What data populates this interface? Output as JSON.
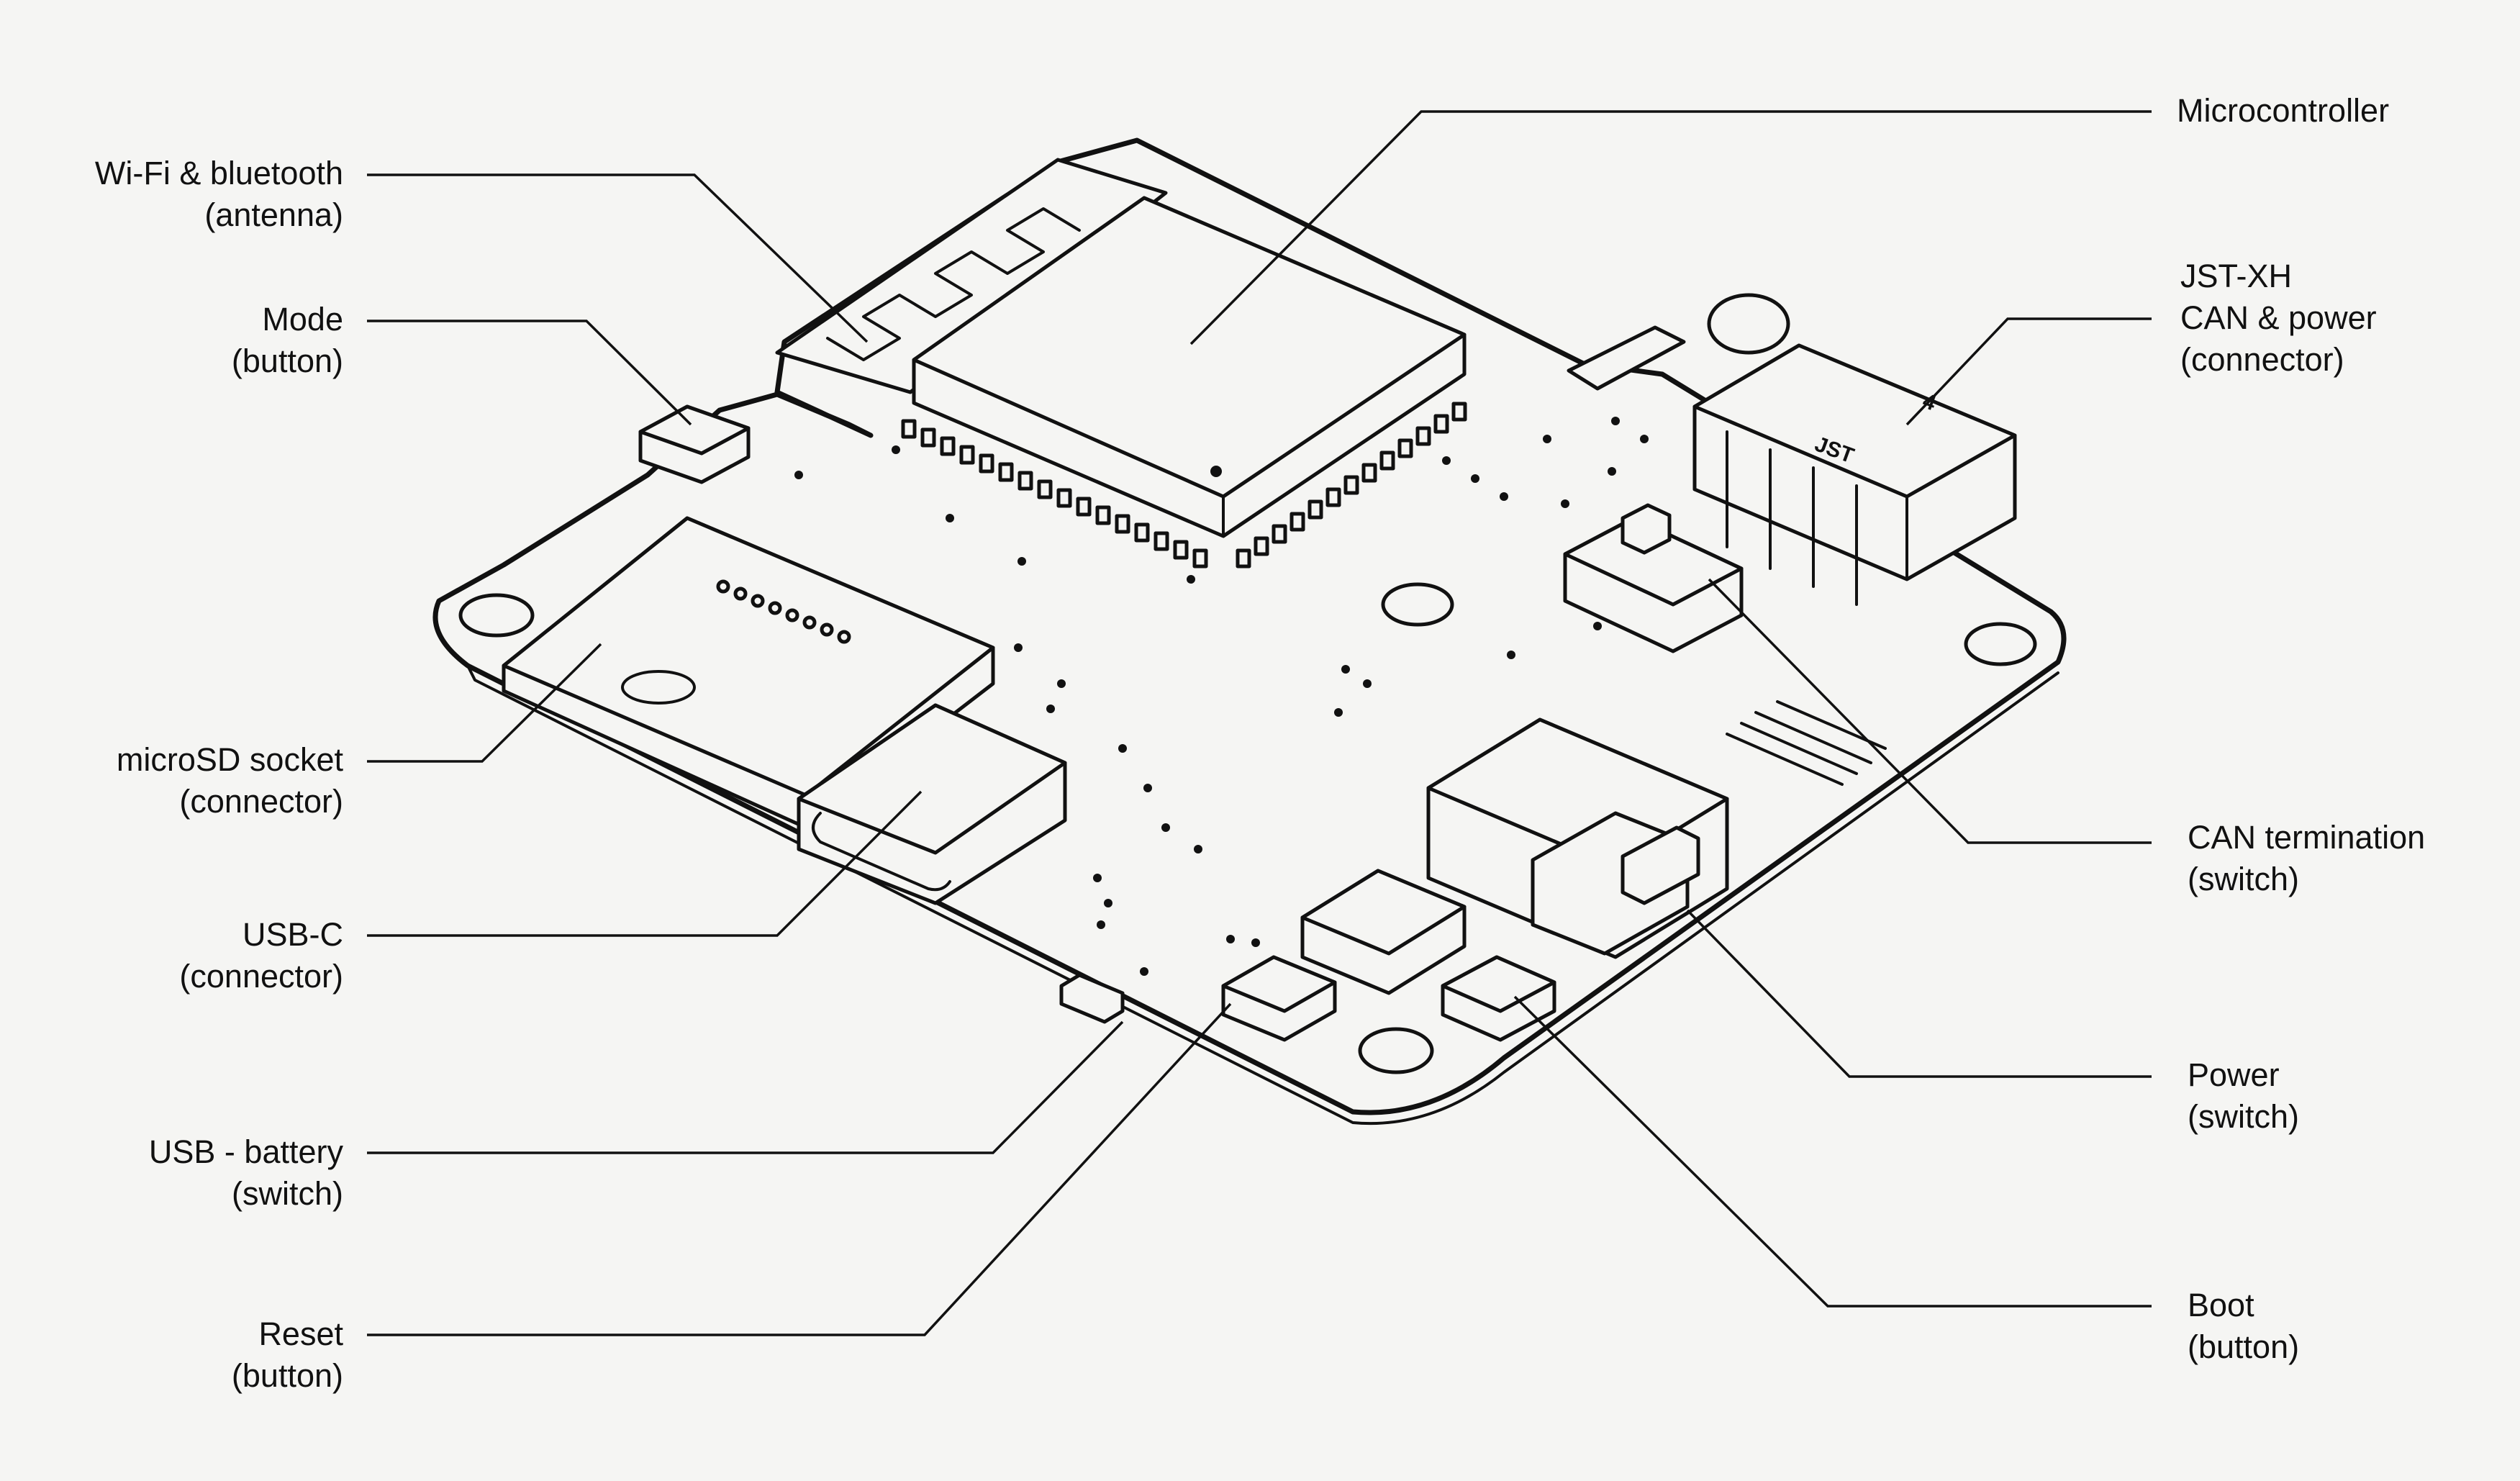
{
  "callouts": {
    "wifi": {
      "line1": "Wi-Fi & bluetooth",
      "line2": "(antenna)"
    },
    "mode": {
      "line1": "Mode",
      "line2": "(button)"
    },
    "microsd": {
      "line1": "microSD socket",
      "line2": "(connector)"
    },
    "usbc": {
      "line1": "USB-C",
      "line2": "(connector)"
    },
    "usbbattery": {
      "line1": "USB - battery",
      "line2": "(switch)"
    },
    "reset": {
      "line1": "Reset",
      "line2": "(button)"
    },
    "microcontroller": {
      "line1": "Microcontroller"
    },
    "jstxh": {
      "line1": "JST-XH",
      "line2": "CAN & power",
      "line3": "(connector)"
    },
    "cantermination": {
      "line1": "CAN termination",
      "line2": "(switch)"
    },
    "power": {
      "line1": "Power",
      "line2": "(switch)"
    },
    "boot": {
      "line1": "Boot",
      "line2": "(button)"
    }
  },
  "board_markings": {
    "connector_brand": "JST",
    "pin_marker": "4"
  },
  "colors": {
    "background": "#f5f5f3",
    "ink": "#111111"
  }
}
